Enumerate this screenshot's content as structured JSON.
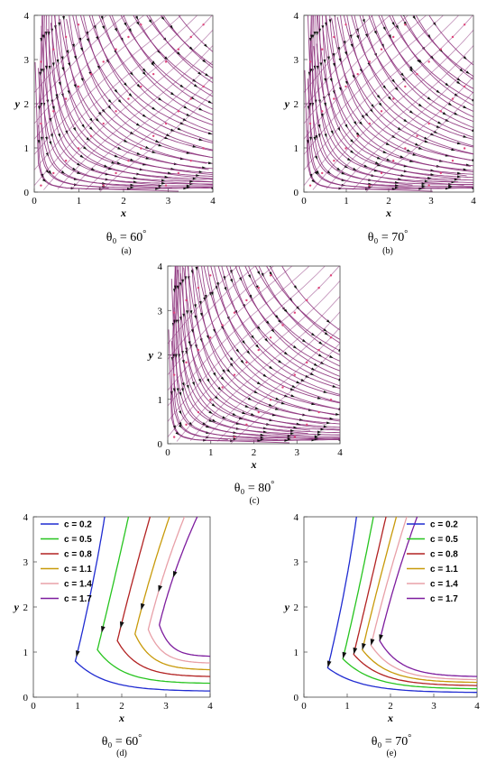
{
  "chart_data": [
    {
      "id": "a",
      "type": "streamplot",
      "theta": "60",
      "xlabel": "x",
      "ylabel": "y",
      "xlim": [
        0,
        4
      ],
      "ylim": [
        0,
        4
      ],
      "xticks": [
        "0",
        "1",
        "2",
        "3",
        "4"
      ],
      "yticks": [
        "0",
        "1",
        "2",
        "3",
        "4"
      ],
      "theta_prefix": "θ₀ = ",
      "theta_suffix": "°",
      "sublabel": "(a)",
      "color": "#8b2f7a",
      "seed_color": "#e0457b"
    },
    {
      "id": "b",
      "type": "streamplot",
      "theta": "70",
      "xlabel": "x",
      "ylabel": "y",
      "xlim": [
        0,
        4
      ],
      "ylim": [
        0,
        4
      ],
      "xticks": [
        "0",
        "1",
        "2",
        "3",
        "4"
      ],
      "yticks": [
        "0",
        "1",
        "2",
        "3",
        "4"
      ],
      "theta_prefix": "θ₀ = ",
      "theta_suffix": "°",
      "sublabel": "(b)",
      "color": "#8b2f7a",
      "seed_color": "#e0457b"
    },
    {
      "id": "c",
      "type": "streamplot",
      "theta": "80",
      "xlabel": "x",
      "ylabel": "y",
      "xlim": [
        0,
        4
      ],
      "ylim": [
        0,
        4
      ],
      "xticks": [
        "0",
        "1",
        "2",
        "3",
        "4"
      ],
      "yticks": [
        "0",
        "1",
        "2",
        "3",
        "4"
      ],
      "theta_prefix": "θ₀ = ",
      "theta_suffix": "°",
      "sublabel": "(c)",
      "color": "#8b2f7a",
      "seed_color": "#e0457b"
    },
    {
      "id": "d",
      "type": "line",
      "theta": "60",
      "xlabel": "x",
      "ylabel": "y",
      "xlim": [
        0,
        4
      ],
      "ylim": [
        0,
        4
      ],
      "xticks": [
        "0",
        "1",
        "2",
        "3",
        "4"
      ],
      "yticks": [
        "0",
        "1",
        "2",
        "3",
        "4"
      ],
      "theta_prefix": "θ₀ = ",
      "theta_suffix": "°",
      "sublabel": "(d)",
      "legend": "top-left",
      "series": [
        {
          "name": "c = 0.2",
          "color": "#1f2bd1",
          "k": 0.2,
          "vmin": 0.95,
          "ymin": 0.8,
          "xend": 4,
          "yend": 0.13,
          "arrow": 1.0
        },
        {
          "name": "c = 0.5",
          "color": "#27c41f",
          "k": 0.5,
          "vmin": 1.45,
          "ymin": 1.05,
          "xend": 4,
          "yend": 0.3,
          "arrow": 1.5
        },
        {
          "name": "c = 0.8",
          "color": "#b22222",
          "k": 0.8,
          "vmin": 1.9,
          "ymin": 1.25,
          "xend": 4,
          "yend": 0.45,
          "arrow": 1.6
        },
        {
          "name": "c = 1.1",
          "color": "#c89a0a",
          "k": 1.1,
          "vmin": 2.3,
          "ymin": 1.4,
          "xend": 4,
          "yend": 0.6,
          "arrow": 2.0
        },
        {
          "name": "c = 1.4",
          "color": "#e8a0a8",
          "k": 1.4,
          "vmin": 2.6,
          "ymin": 1.5,
          "xend": 4,
          "yend": 0.75,
          "arrow": 2.4
        },
        {
          "name": "c = 1.7",
          "color": "#7d1c9e",
          "k": 1.7,
          "vmin": 2.85,
          "ymin": 1.6,
          "xend": 4,
          "yend": 0.9,
          "arrow": 2.7
        }
      ]
    },
    {
      "id": "e",
      "type": "line",
      "theta": "70",
      "xlabel": "x",
      "ylabel": "y",
      "xlim": [
        0,
        4
      ],
      "ylim": [
        0,
        4
      ],
      "xticks": [
        "0",
        "1",
        "2",
        "3",
        "4"
      ],
      "yticks": [
        "0",
        "1",
        "2",
        "3",
        "4"
      ],
      "theta_prefix": "θ₀ = ",
      "theta_suffix": "°",
      "sublabel": "(e)",
      "legend": "top-right",
      "series": [
        {
          "name": "c = 0.2",
          "color": "#1f2bd1",
          "k": 0.2,
          "vmin": 0.55,
          "ymin": 0.65,
          "xend": 4,
          "yend": 0.1,
          "arrow": 0.6
        },
        {
          "name": "c = 0.5",
          "color": "#27c41f",
          "k": 0.5,
          "vmin": 0.9,
          "ymin": 0.85,
          "xend": 4,
          "yend": 0.18,
          "arrow": 0.7
        },
        {
          "name": "c = 0.8",
          "color": "#b22222",
          "k": 0.8,
          "vmin": 1.15,
          "ymin": 0.95,
          "xend": 4,
          "yend": 0.25,
          "arrow": 0.8
        },
        {
          "name": "c = 1.1",
          "color": "#c89a0a",
          "k": 1.1,
          "vmin": 1.35,
          "ymin": 1.05,
          "xend": 4,
          "yend": 0.32,
          "arrow": 0.9
        },
        {
          "name": "c = 1.4",
          "color": "#e8a0a8",
          "k": 1.4,
          "vmin": 1.55,
          "ymin": 1.15,
          "xend": 4,
          "yend": 0.38,
          "arrow": 1.1
        },
        {
          "name": "c = 1.7",
          "color": "#7d1c9e",
          "k": 1.7,
          "vmin": 1.75,
          "ymin": 1.25,
          "xend": 4,
          "yend": 0.45,
          "arrow": 1.3
        }
      ]
    }
  ]
}
